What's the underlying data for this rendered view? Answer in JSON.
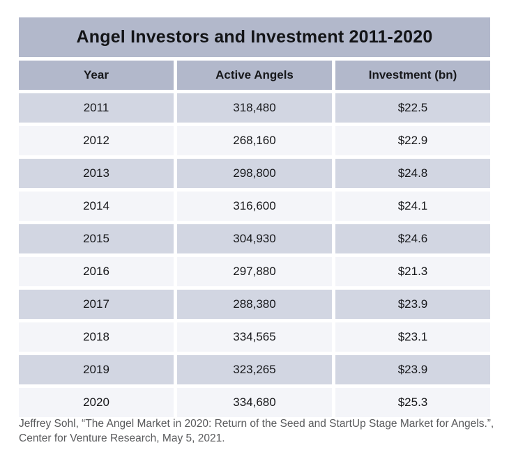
{
  "table": {
    "title": "Angel Investors and Investment 2011-2020",
    "columns": [
      "Year",
      "Active Angels",
      "Investment (bn)"
    ],
    "rows": [
      [
        "2011",
        "318,480",
        "$22.5"
      ],
      [
        "2012",
        "268,160",
        "$22.9"
      ],
      [
        "2013",
        "298,800",
        "$24.8"
      ],
      [
        "2014",
        "316,600",
        "$24.1"
      ],
      [
        "2015",
        "304,930",
        "$24.6"
      ],
      [
        "2016",
        "297,880",
        "$21.3"
      ],
      [
        "2017",
        "288,380",
        "$23.9"
      ],
      [
        "2018",
        "334,565",
        "$23.1"
      ],
      [
        "2019",
        "323,265",
        "$23.9"
      ],
      [
        "2020",
        "334,680",
        "$25.3"
      ]
    ]
  },
  "source": {
    "text": "Jeffrey Sohl, “The Angel Market in 2020: Return of the Seed and StartUp Stage Market for Angels.”, Center for Venture Research, May 5, 2021."
  },
  "colors": {
    "header_bg": "#b2b8cb",
    "row_dark": "#d2d6e2",
    "row_light": "#f4f5f9",
    "text": "#17181b",
    "source_text": "#595a5c"
  },
  "chart_data": {
    "type": "table",
    "title": "Angel Investors and Investment 2011-2020",
    "columns": [
      "Year",
      "Active Angels",
      "Investment (bn)"
    ],
    "years": [
      2011,
      2012,
      2013,
      2014,
      2015,
      2016,
      2017,
      2018,
      2019,
      2020
    ],
    "active_angels": [
      318480,
      268160,
      298800,
      316600,
      304930,
      297880,
      288380,
      334565,
      323265,
      334680
    ],
    "investment_bn": [
      22.5,
      22.9,
      24.8,
      24.1,
      24.6,
      21.3,
      23.9,
      23.1,
      23.9,
      25.3
    ],
    "source": "Jeffrey Sohl, “The Angel Market in 2020: Return of the Seed and StartUp Stage Market for Angels.”, Center for Venture Research, May 5, 2021."
  }
}
